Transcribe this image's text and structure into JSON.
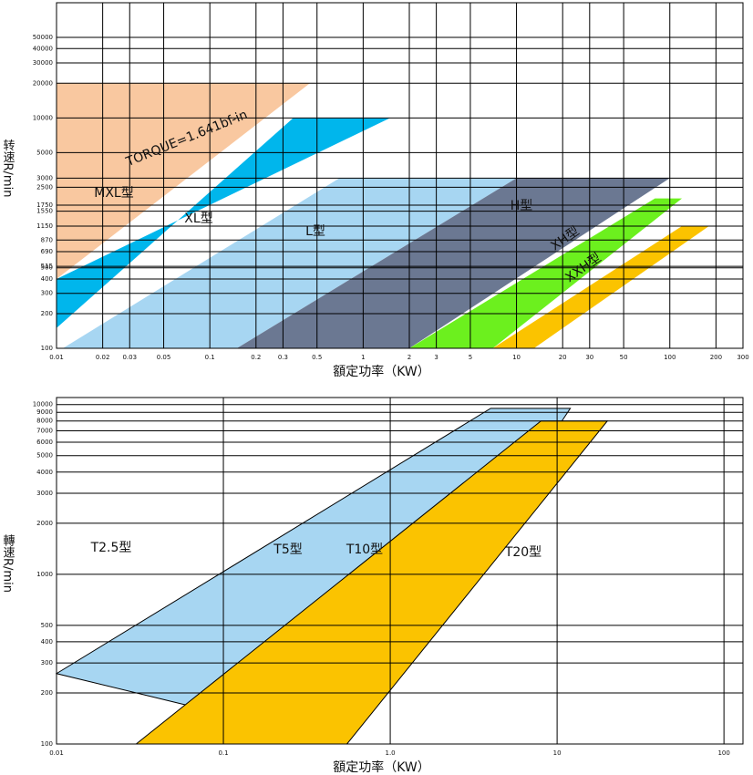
{
  "chart_data": [
    {
      "type": "region",
      "xscale": "log",
      "yscale": "log",
      "grid": true,
      "x_label": "額定功率（KW）",
      "y_label": "转速R/min",
      "annotation": "TORQUE=1.641bf-in",
      "xlim": [
        0.01,
        300
      ],
      "ylim": [
        100,
        100000
      ],
      "xticks": [
        0.01,
        0.02,
        0.03,
        0.05,
        0.1,
        0.2,
        0.3,
        0.5,
        1,
        2,
        3,
        5,
        10,
        20,
        30,
        50,
        100,
        200,
        300
      ],
      "yticks": [
        100,
        200,
        300,
        400,
        500,
        515,
        690,
        870,
        1150,
        1550,
        1750,
        2500,
        3000,
        5000,
        10000,
        20000,
        30000,
        40000,
        50000
      ],
      "series": [
        {
          "name": "MXL型",
          "color": "#f9c8a0",
          "x": [
            0.01,
            0.45,
            0.01
          ],
          "values": [
            20000,
            20000,
            400
          ]
        },
        {
          "name": "XL型",
          "color": "#00b6ec",
          "x": [
            0.01,
            1.5,
            0.35,
            0.01
          ],
          "values": [
            400,
            10000,
            10000,
            150
          ]
        },
        {
          "name": "L型",
          "color": "#a7d6f2",
          "x": [
            0.011,
            0.7,
            10,
            0.15
          ],
          "values": [
            100,
            3000,
            3000,
            100
          ]
        },
        {
          "name": "H型",
          "color": "#6b7892",
          "x": [
            0.15,
            10,
            100,
            2
          ],
          "values": [
            100,
            3000,
            3000,
            100
          ]
        },
        {
          "name": "XH型",
          "color": "#6cf01e",
          "x": [
            2,
            80,
            120,
            7
          ],
          "values": [
            100,
            2000,
            2000,
            100
          ]
        },
        {
          "name": "XXH型",
          "color": "#fbc300",
          "x": [
            7,
            120,
            180,
            13
          ],
          "values": [
            100,
            1150,
            1150,
            100
          ]
        }
      ]
    },
    {
      "type": "region",
      "xscale": "log",
      "yscale": "log",
      "grid": true,
      "x_label": "額定功率（KW）",
      "y_label": "轉速R/min",
      "xlim": [
        0.01,
        130
      ],
      "ylim": [
        100,
        11000
      ],
      "xticks": [
        0.01,
        0.1,
        {
          "value": 1,
          "label": "1.0"
        },
        10,
        100
      ],
      "yticks": [
        100,
        200,
        300,
        400,
        500,
        1000,
        2000,
        3000,
        4000,
        5000,
        6000,
        7000,
        8000,
        9000,
        10000
      ],
      "series": [
        {
          "name": "T2.5型",
          "color": "#ffffff",
          "x": [],
          "values": []
        },
        {
          "name": "T5型",
          "color": "#a7d6f2",
          "x": [
            0.01,
            4,
            12,
            0.55
          ],
          "values": [
            260,
            9500,
            9500,
            100
          ]
        },
        {
          "name": "T10型",
          "color": "#fbc300",
          "x": [
            0.03,
            8,
            20,
            0.55
          ],
          "values": [
            100,
            8000,
            8000,
            100
          ]
        },
        {
          "name": "T20型",
          "color": "#ffffff",
          "x": [],
          "values": []
        }
      ]
    }
  ]
}
